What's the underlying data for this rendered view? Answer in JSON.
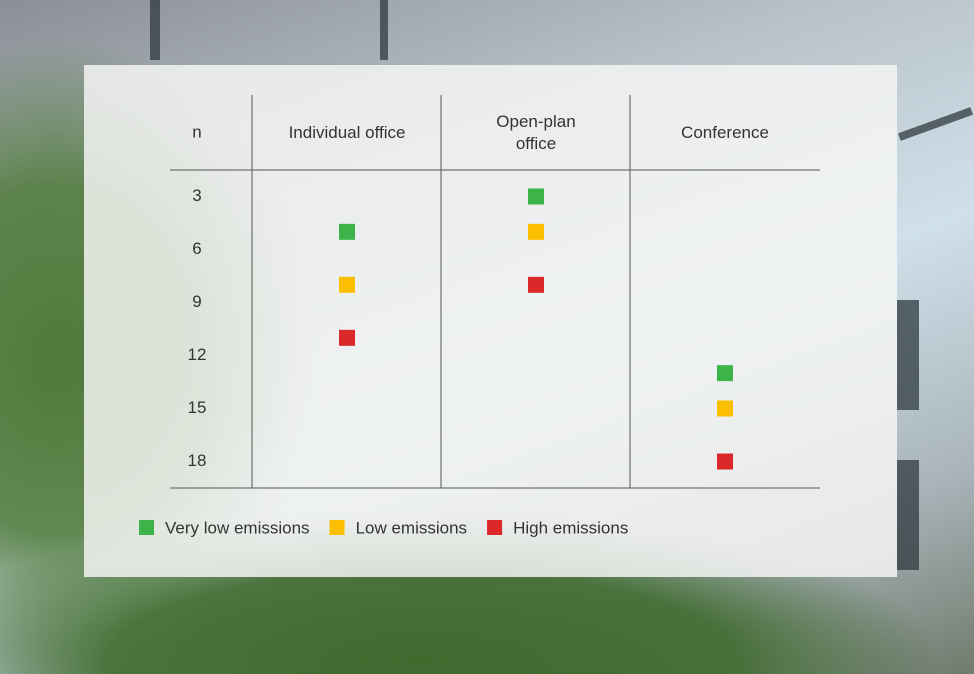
{
  "chart_data": {
    "type": "dot",
    "y_label": "n",
    "categories": [
      "Individual office",
      "Open-plan office",
      "Conference"
    ],
    "ylim": [
      1.5,
      19.5
    ],
    "yticks": [
      3,
      6,
      9,
      12,
      15,
      18
    ],
    "series": [
      {
        "name": "Very low emissions",
        "color": "#3cb44a",
        "values": [
          5,
          3,
          13
        ]
      },
      {
        "name": "Low emissions",
        "color": "#fbbf00",
        "values": [
          8,
          5,
          15
        ]
      },
      {
        "name": "High emissions",
        "color": "#dc2828",
        "values": [
          11,
          8,
          18
        ]
      }
    ]
  }
}
